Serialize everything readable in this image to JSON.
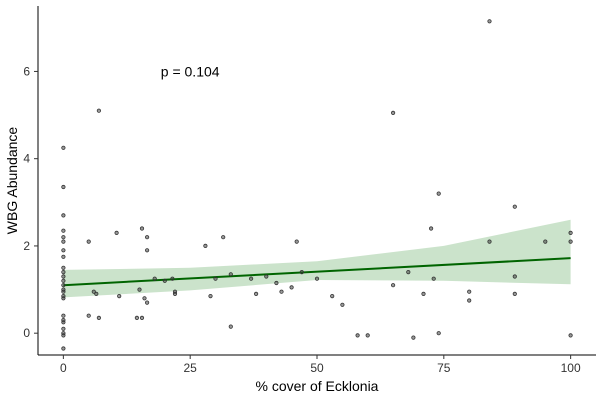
{
  "chart_data": {
    "type": "scatter",
    "title": "",
    "xlabel": "% cover of Ecklonia",
    "ylabel": "WBG Abundance",
    "xlim": [
      -5,
      105
    ],
    "ylim": [
      -0.5,
      7.5
    ],
    "x_ticks": [
      0,
      25,
      50,
      75,
      100
    ],
    "y_ticks": [
      0,
      2,
      4,
      6
    ],
    "grid": false,
    "legend": "none",
    "annotation": "p = 0.104",
    "annotation_position": {
      "x": 25,
      "y": 6.0
    },
    "colors": {
      "points": "#333333",
      "fit_line": "#006400",
      "ribbon": "#a9d0a9"
    },
    "points": [
      {
        "x": 0,
        "y": 4.25
      },
      {
        "x": 0,
        "y": 3.35
      },
      {
        "x": 0,
        "y": 2.7
      },
      {
        "x": 0,
        "y": 2.35
      },
      {
        "x": 0,
        "y": 2.2
      },
      {
        "x": 0,
        "y": 2.1
      },
      {
        "x": 0,
        "y": 1.9
      },
      {
        "x": 0,
        "y": 1.75
      },
      {
        "x": 0,
        "y": 1.5
      },
      {
        "x": 0,
        "y": 1.4
      },
      {
        "x": 0,
        "y": 1.3
      },
      {
        "x": 0,
        "y": 1.2
      },
      {
        "x": 0,
        "y": 1.1
      },
      {
        "x": 0,
        "y": 1.0
      },
      {
        "x": 0,
        "y": 0.95
      },
      {
        "x": 0,
        "y": 0.85
      },
      {
        "x": 0,
        "y": 0.8
      },
      {
        "x": 0,
        "y": 0.4
      },
      {
        "x": 0,
        "y": 0.3
      },
      {
        "x": 0,
        "y": 0.25
      },
      {
        "x": 0,
        "y": 0.1
      },
      {
        "x": 0,
        "y": 0.0
      },
      {
        "x": 0,
        "y": -0.05
      },
      {
        "x": 0,
        "y": -0.35
      },
      {
        "x": 5,
        "y": 2.1
      },
      {
        "x": 5,
        "y": 0.4
      },
      {
        "x": 6,
        "y": 0.95
      },
      {
        "x": 6.5,
        "y": 0.9
      },
      {
        "x": 7,
        "y": 5.1
      },
      {
        "x": 7,
        "y": 0.35
      },
      {
        "x": 10.5,
        "y": 2.3
      },
      {
        "x": 11,
        "y": 0.85
      },
      {
        "x": 14.5,
        "y": 0.35
      },
      {
        "x": 15,
        "y": 1.0
      },
      {
        "x": 15.5,
        "y": 2.4
      },
      {
        "x": 15.5,
        "y": 0.35
      },
      {
        "x": 16,
        "y": 0.8
      },
      {
        "x": 16.5,
        "y": 2.2
      },
      {
        "x": 16.5,
        "y": 1.9
      },
      {
        "x": 16.5,
        "y": 0.7
      },
      {
        "x": 18,
        "y": 1.25
      },
      {
        "x": 20,
        "y": 1.2
      },
      {
        "x": 21.5,
        "y": 1.25
      },
      {
        "x": 22,
        "y": 0.95
      },
      {
        "x": 22,
        "y": 0.9
      },
      {
        "x": 28,
        "y": 2.0
      },
      {
        "x": 29,
        "y": 0.85
      },
      {
        "x": 30,
        "y": 1.25
      },
      {
        "x": 31.5,
        "y": 2.2
      },
      {
        "x": 33,
        "y": 1.35
      },
      {
        "x": 33,
        "y": 0.15
      },
      {
        "x": 37,
        "y": 1.25
      },
      {
        "x": 38,
        "y": 0.9
      },
      {
        "x": 40,
        "y": 1.3
      },
      {
        "x": 42,
        "y": 1.15
      },
      {
        "x": 43,
        "y": 0.95
      },
      {
        "x": 45,
        "y": 1.05
      },
      {
        "x": 46,
        "y": 2.1
      },
      {
        "x": 47,
        "y": 1.4
      },
      {
        "x": 50,
        "y": 1.25
      },
      {
        "x": 53,
        "y": 0.85
      },
      {
        "x": 55,
        "y": 0.65
      },
      {
        "x": 58,
        "y": -0.05
      },
      {
        "x": 60,
        "y": -0.05
      },
      {
        "x": 65,
        "y": 5.05
      },
      {
        "x": 65,
        "y": 1.1
      },
      {
        "x": 68,
        "y": 1.4
      },
      {
        "x": 69,
        "y": -0.1
      },
      {
        "x": 71,
        "y": 0.9
      },
      {
        "x": 72.5,
        "y": 2.4
      },
      {
        "x": 73,
        "y": 1.25
      },
      {
        "x": 74,
        "y": 3.2
      },
      {
        "x": 74,
        "y": 0.0
      },
      {
        "x": 80,
        "y": 0.95
      },
      {
        "x": 80,
        "y": 0.75
      },
      {
        "x": 84,
        "y": 7.15
      },
      {
        "x": 84,
        "y": 2.1
      },
      {
        "x": 89,
        "y": 2.9
      },
      {
        "x": 89,
        "y": 1.3
      },
      {
        "x": 89,
        "y": 0.9
      },
      {
        "x": 95,
        "y": 2.1
      },
      {
        "x": 100,
        "y": 2.3
      },
      {
        "x": 100,
        "y": 2.1
      },
      {
        "x": 100,
        "y": -0.05
      }
    ],
    "fit_line": {
      "x": [
        0,
        100
      ],
      "y": [
        1.1,
        1.72
      ]
    },
    "confidence_band": {
      "x": [
        0,
        25,
        50,
        75,
        100
      ],
      "upper": [
        1.45,
        1.5,
        1.65,
        2.0,
        2.6
      ],
      "lower": [
        0.82,
        0.98,
        1.22,
        1.2,
        1.12
      ]
    }
  }
}
